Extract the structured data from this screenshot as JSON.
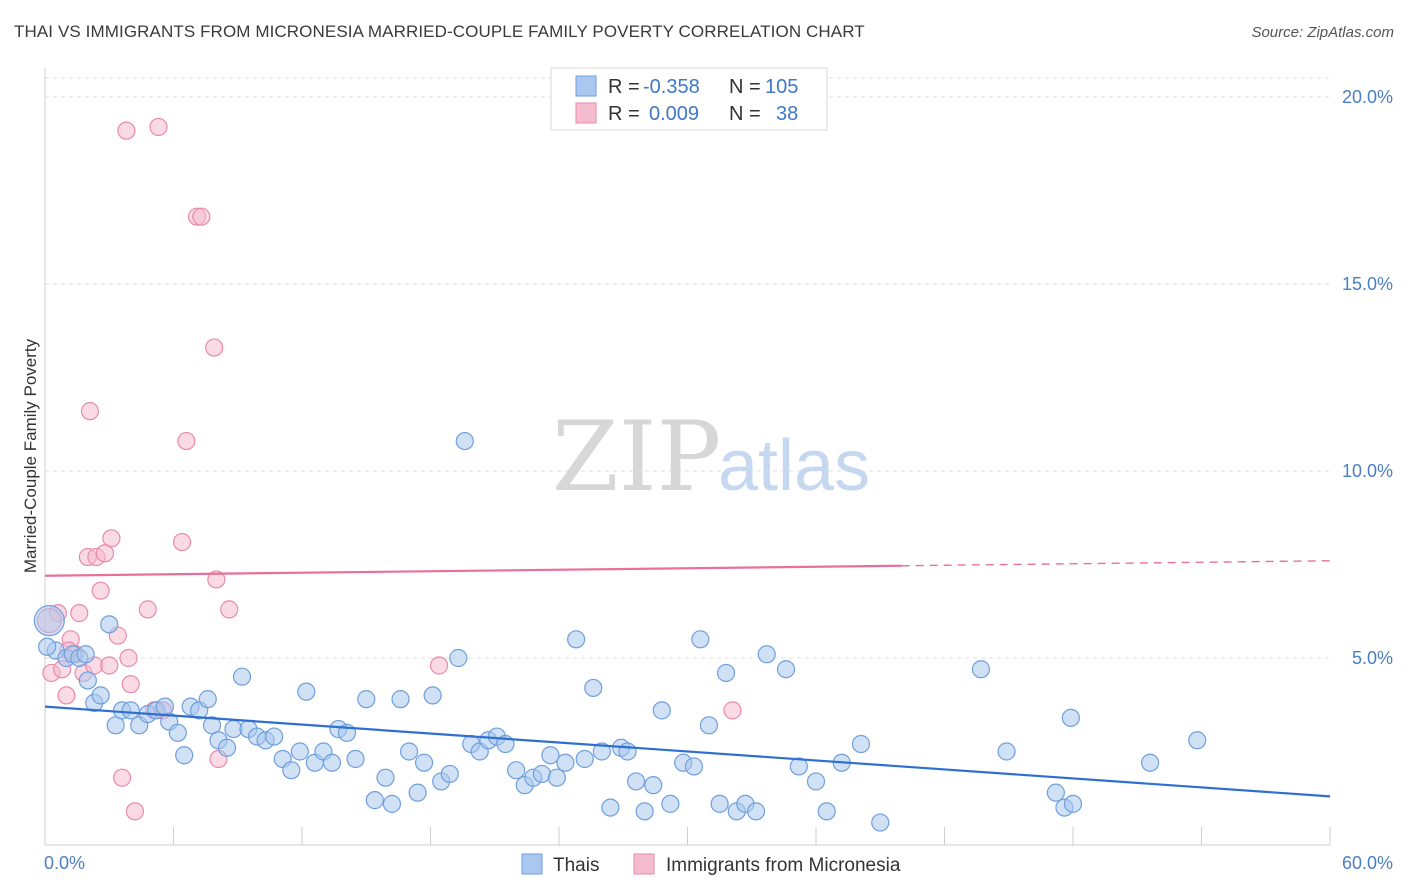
{
  "header": {
    "title": "THAI VS IMMIGRANTS FROM MICRONESIA MARRIED-COUPLE FAMILY POVERTY CORRELATION CHART",
    "source": "Source: ZipAtlas.com"
  },
  "watermark": {
    "zip": "ZIP",
    "atlas": "atlas"
  },
  "colors": {
    "blue": "#4a86d8",
    "blue_fill": "#aac8ef",
    "pink": "#e8709a",
    "pink_fill": "#f5bcd0",
    "grid": "#dddddd",
    "tick_text": "#4a7fc4"
  },
  "legend": {
    "rows": [
      {
        "r_label": "R =",
        "r_value": "-0.358",
        "n_label": "N =",
        "n_value": "105"
      },
      {
        "r_label": "R =",
        "r_value": "0.009",
        "n_label": "N =",
        "n_value": "38"
      }
    ]
  },
  "bottom_legend": [
    "Thais",
    "Immigrants from Micronesia"
  ],
  "chart_data": {
    "type": "scatter",
    "ylabel": "Married-Couple Family Poverty",
    "xlim": [
      0,
      60
    ],
    "ylim": [
      0,
      20
    ],
    "x_tick_labels": [
      "0.0%",
      "60.0%"
    ],
    "y_ticks": [
      {
        "value": 5,
        "label": "5.0%"
      },
      {
        "value": 10,
        "label": "10.0%"
      },
      {
        "value": 15,
        "label": "15.0%"
      },
      {
        "value": 20,
        "label": "20.0%"
      }
    ],
    "grid": true,
    "legend_position": "top-center",
    "series": [
      {
        "name": "Thais",
        "color": "#4a86d8",
        "trend": {
          "x0": 0,
          "y0": 3.7,
          "x1": 60,
          "y1": 1.3,
          "dashed_from": 60
        },
        "points": [
          [
            0.2,
            6.0
          ],
          [
            0.5,
            5.2
          ],
          [
            1.0,
            5.0
          ],
          [
            1.3,
            5.1
          ],
          [
            1.6,
            5.0
          ],
          [
            2.0,
            4.4
          ],
          [
            2.3,
            3.8
          ],
          [
            2.6,
            4.0
          ],
          [
            3.0,
            5.9
          ],
          [
            3.3,
            3.2
          ],
          [
            3.6,
            3.6
          ],
          [
            4.0,
            3.6
          ],
          [
            4.4,
            3.2
          ],
          [
            4.8,
            3.5
          ],
          [
            5.2,
            3.6
          ],
          [
            5.6,
            3.7
          ],
          [
            5.8,
            3.3
          ],
          [
            6.2,
            3.0
          ],
          [
            6.5,
            2.4
          ],
          [
            6.8,
            3.7
          ],
          [
            7.2,
            3.6
          ],
          [
            7.6,
            3.9
          ],
          [
            7.8,
            3.2
          ],
          [
            8.1,
            2.8
          ],
          [
            8.5,
            2.6
          ],
          [
            8.8,
            3.1
          ],
          [
            9.2,
            4.5
          ],
          [
            9.5,
            3.1
          ],
          [
            9.9,
            2.9
          ],
          [
            10.3,
            2.8
          ],
          [
            10.7,
            2.9
          ],
          [
            11.1,
            2.3
          ],
          [
            11.5,
            2.0
          ],
          [
            11.9,
            2.5
          ],
          [
            12.2,
            4.1
          ],
          [
            12.6,
            2.2
          ],
          [
            13.0,
            2.5
          ],
          [
            13.4,
            2.2
          ],
          [
            13.7,
            3.1
          ],
          [
            14.1,
            3.0
          ],
          [
            14.5,
            2.3
          ],
          [
            15.0,
            3.9
          ],
          [
            15.4,
            1.2
          ],
          [
            15.9,
            1.8
          ],
          [
            16.2,
            1.1
          ],
          [
            16.6,
            3.9
          ],
          [
            17.0,
            2.5
          ],
          [
            17.4,
            1.4
          ],
          [
            17.7,
            2.2
          ],
          [
            18.1,
            4.0
          ],
          [
            18.5,
            1.7
          ],
          [
            18.9,
            1.9
          ],
          [
            19.3,
            5.0
          ],
          [
            19.6,
            10.8
          ],
          [
            19.9,
            2.7
          ],
          [
            20.3,
            2.5
          ],
          [
            20.7,
            2.8
          ],
          [
            21.1,
            2.9
          ],
          [
            21.5,
            2.7
          ],
          [
            22.0,
            2.0
          ],
          [
            22.4,
            1.6
          ],
          [
            22.8,
            1.8
          ],
          [
            23.2,
            1.9
          ],
          [
            23.6,
            2.4
          ],
          [
            23.9,
            1.8
          ],
          [
            24.3,
            2.2
          ],
          [
            24.8,
            5.5
          ],
          [
            25.2,
            2.3
          ],
          [
            25.6,
            4.2
          ],
          [
            26.0,
            2.5
          ],
          [
            26.4,
            1.0
          ],
          [
            26.9,
            2.6
          ],
          [
            27.2,
            2.5
          ],
          [
            27.6,
            1.7
          ],
          [
            28.0,
            0.9
          ],
          [
            28.4,
            1.6
          ],
          [
            28.8,
            3.6
          ],
          [
            29.2,
            1.1
          ],
          [
            29.8,
            2.2
          ],
          [
            30.3,
            2.1
          ],
          [
            30.6,
            5.5
          ],
          [
            31.0,
            3.2
          ],
          [
            31.5,
            1.1
          ],
          [
            31.8,
            4.6
          ],
          [
            32.3,
            0.9
          ],
          [
            32.7,
            1.1
          ],
          [
            33.2,
            0.9
          ],
          [
            33.7,
            5.1
          ],
          [
            34.6,
            4.7
          ],
          [
            35.2,
            2.1
          ],
          [
            36.0,
            1.7
          ],
          [
            36.5,
            0.9
          ],
          [
            37.2,
            2.2
          ],
          [
            38.1,
            2.7
          ],
          [
            39.0,
            0.6
          ],
          [
            43.7,
            4.7
          ],
          [
            44.9,
            2.5
          ],
          [
            47.2,
            1.4
          ],
          [
            47.6,
            1.0
          ],
          [
            47.9,
            3.4
          ],
          [
            48.0,
            1.1
          ],
          [
            51.6,
            2.2
          ],
          [
            53.8,
            2.8
          ],
          [
            0.1,
            5.3
          ],
          [
            1.9,
            5.1
          ]
        ]
      },
      {
        "name": "Immigrants from Micronesia",
        "color": "#e8709a",
        "trend": {
          "x0": 0,
          "y0": 7.2,
          "x1": 60,
          "y1": 7.6,
          "dashed_from": 40
        },
        "points": [
          [
            0.3,
            4.6
          ],
          [
            0.6,
            6.2
          ],
          [
            0.8,
            4.7
          ],
          [
            1.0,
            4.0
          ],
          [
            1.2,
            5.5
          ],
          [
            1.4,
            5.1
          ],
          [
            1.6,
            6.2
          ],
          [
            1.8,
            4.6
          ],
          [
            2.0,
            7.7
          ],
          [
            2.1,
            11.6
          ],
          [
            2.3,
            4.8
          ],
          [
            2.4,
            7.7
          ],
          [
            2.6,
            6.8
          ],
          [
            2.8,
            7.8
          ],
          [
            3.0,
            4.8
          ],
          [
            3.1,
            8.2
          ],
          [
            3.4,
            5.6
          ],
          [
            3.6,
            1.8
          ],
          [
            3.8,
            19.1
          ],
          [
            3.9,
            5.0
          ],
          [
            4.0,
            4.3
          ],
          [
            4.2,
            0.9
          ],
          [
            4.8,
            6.3
          ],
          [
            5.1,
            3.6
          ],
          [
            5.3,
            19.2
          ],
          [
            5.5,
            3.6
          ],
          [
            6.4,
            8.1
          ],
          [
            6.6,
            10.8
          ],
          [
            7.1,
            16.8
          ],
          [
            7.3,
            16.8
          ],
          [
            7.9,
            13.3
          ],
          [
            8.0,
            7.1
          ],
          [
            8.1,
            2.3
          ],
          [
            8.6,
            6.3
          ],
          [
            18.4,
            4.8
          ],
          [
            32.1,
            3.6
          ],
          [
            0.2,
            6.0
          ],
          [
            1.1,
            5.2
          ]
        ]
      }
    ]
  }
}
